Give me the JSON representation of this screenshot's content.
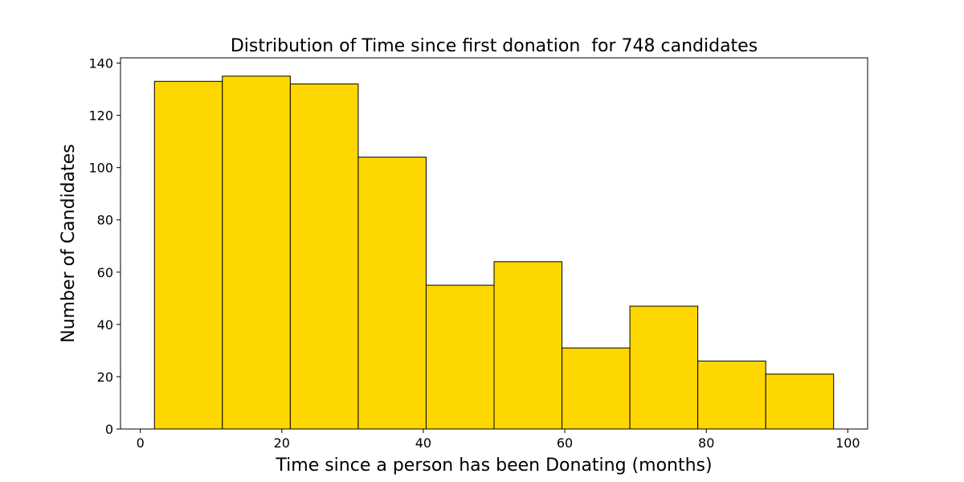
{
  "chart_data": {
    "type": "bar",
    "subtype": "histogram",
    "title": "Distribution of Time since first donation  for 748 candidates",
    "xlabel": "Time since a person has been Donating (months)",
    "ylabel": "Number of Candidates",
    "bin_edges": [
      2,
      11.6,
      21.2,
      30.8,
      40.4,
      50,
      59.6,
      69.2,
      78.8,
      88.4,
      98
    ],
    "values": [
      133,
      135,
      132,
      104,
      55,
      64,
      31,
      47,
      26,
      21
    ],
    "xlim": [
      -2.8,
      102.8
    ],
    "ylim": [
      0,
      142
    ],
    "x_ticks": [
      0,
      20,
      40,
      60,
      80,
      100
    ],
    "y_ticks": [
      0,
      20,
      40,
      60,
      80,
      100,
      120,
      140
    ],
    "bar_color": "#FFD700",
    "edge_color": "#000000",
    "grid": false,
    "legend": "none"
  }
}
